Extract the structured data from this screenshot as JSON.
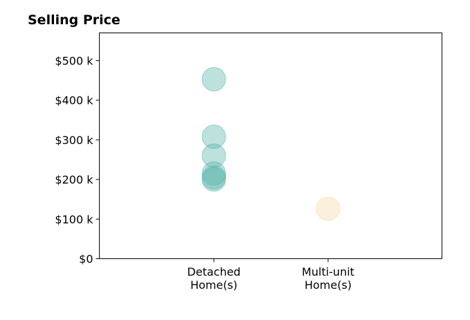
{
  "chart_data": {
    "type": "scatter",
    "title": "Selling Price",
    "xlabel": "",
    "ylabel": "",
    "categories": [
      [
        "Detached",
        "Home(s)"
      ],
      [
        "Multi-unit",
        "Home(s)"
      ]
    ],
    "ylim": [
      0,
      570000
    ],
    "yticks": [
      0,
      100000,
      200000,
      300000,
      400000,
      500000
    ],
    "ytick_labels": [
      "$0",
      "$100 k",
      "$200 k",
      "$300 k",
      "$400 k",
      "$500 k"
    ],
    "grid": false,
    "series": [
      {
        "category_index": 0,
        "color": "#5bb5aa",
        "values": [
          453000,
          308000,
          260000,
          215000,
          205000,
          200000
        ]
      },
      {
        "category_index": 1,
        "color": "#f2d9a6",
        "values": [
          126000
        ]
      }
    ]
  }
}
